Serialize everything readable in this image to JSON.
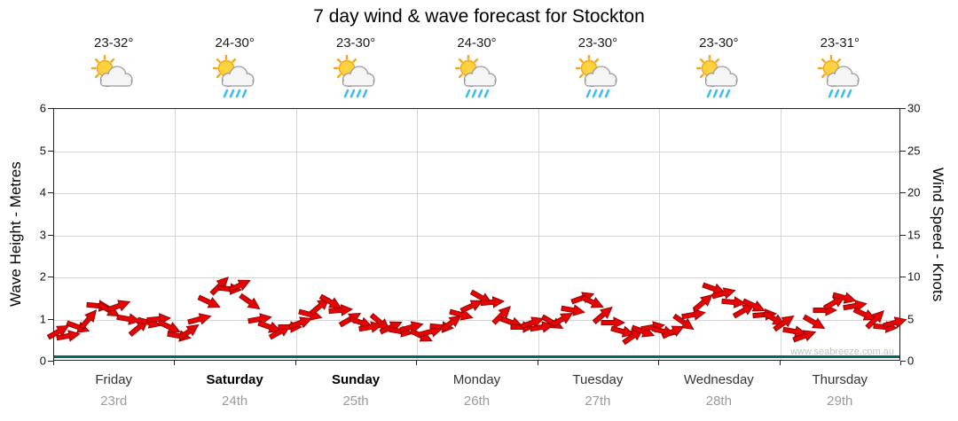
{
  "title": "7 day wind & wave forecast for Stockton",
  "watermark": "www.seabreeze.com.au",
  "axes": {
    "left_title": "Wave Height - Metres",
    "right_title": "Wind Speed - Knots",
    "left_ticks": [
      "0",
      "1",
      "2",
      "3",
      "4",
      "5",
      "6"
    ],
    "right_ticks": [
      "0",
      "5",
      "10",
      "15",
      "20",
      "25",
      "30"
    ]
  },
  "days": [
    {
      "name": "Friday",
      "date": "23rd",
      "temp": "23-32°",
      "icon": "partly-cloudy",
      "bold": false
    },
    {
      "name": "Saturday",
      "date": "24th",
      "temp": "24-30°",
      "icon": "sun-showers",
      "bold": true
    },
    {
      "name": "Sunday",
      "date": "25th",
      "temp": "23-30°",
      "icon": "sun-showers",
      "bold": true
    },
    {
      "name": "Monday",
      "date": "26th",
      "temp": "24-30°",
      "icon": "sun-showers",
      "bold": false
    },
    {
      "name": "Tuesday",
      "date": "27th",
      "temp": "23-30°",
      "icon": "sun-showers",
      "bold": false
    },
    {
      "name": "Wednesday",
      "date": "28th",
      "temp": "23-30°",
      "icon": "sun-showers",
      "bold": false
    },
    {
      "name": "Thursday",
      "date": "29th",
      "temp": "23-31°",
      "icon": "sun-showers",
      "bold": false
    }
  ],
  "chart_data": {
    "type": "wind-arrows",
    "title": "7 day wind & wave forecast for Stockton",
    "x_categories": [
      "Friday",
      "Saturday",
      "Sunday",
      "Monday",
      "Tuesday",
      "Wednesday",
      "Thursday"
    ],
    "left_axis": {
      "label": "Wave Height - Metres",
      "range": [
        0,
        6
      ]
    },
    "right_axis": {
      "label": "Wind Speed - Knots",
      "range": [
        0,
        30
      ]
    },
    "points_per_day": 12,
    "wind_speed_knots": [
      3.5,
      3,
      4,
      5,
      6.5,
      6,
      6.5,
      5,
      4,
      4.5,
      5,
      4,
      3,
      3.5,
      5,
      7,
      9,
      8.5,
      9,
      7,
      5,
      4,
      3.5,
      4,
      4.5,
      5.5,
      6.5,
      7,
      6,
      5,
      4.5,
      4,
      4.5,
      4,
      3.5,
      4,
      3,
      3.5,
      4,
      4.5,
      5.5,
      6.5,
      7.5,
      7,
      5.5,
      4.5,
      4,
      4.5,
      4,
      4.5,
      5,
      6,
      7.5,
      7,
      5.5,
      4.5,
      3.5,
      3,
      3.5,
      4,
      3.5,
      3.5,
      4.5,
      5.5,
      7,
      8.5,
      8,
      7,
      6,
      6.5,
      5.5,
      5,
      4.5,
      3.5,
      3,
      4.5,
      6,
      7,
      7.5,
      6.5,
      5.5,
      5,
      4,
      4.5
    ],
    "wind_dir_deg": [
      -30,
      -10,
      20,
      -50,
      5,
      30,
      -20,
      10,
      -40,
      15,
      -5,
      25,
      10,
      -35,
      -15,
      25,
      -45,
      5,
      -25,
      35,
      -10,
      20,
      -30,
      0,
      -20,
      15,
      -40,
      30,
      -5,
      -30,
      20,
      -10,
      40,
      -25,
      10,
      -15,
      25,
      -15,
      5,
      -35,
      15,
      -25,
      30,
      -5,
      -45,
      20,
      0,
      -20,
      -10,
      30,
      -30,
      10,
      -20,
      25,
      -40,
      0,
      15,
      -35,
      20,
      -10,
      15,
      -25,
      35,
      -10,
      -40,
      20,
      -15,
      5,
      -30,
      25,
      -5,
      30,
      -35,
      10,
      -20,
      30,
      0,
      -30,
      15,
      -10,
      25,
      -45,
      5,
      -15
    ],
    "wave_height_m": 0.1
  },
  "colors": {
    "arrow": "#e60505",
    "arrow_outline": "#990000",
    "wave_line": "#006a6a",
    "grid": "#d6d6d6"
  }
}
